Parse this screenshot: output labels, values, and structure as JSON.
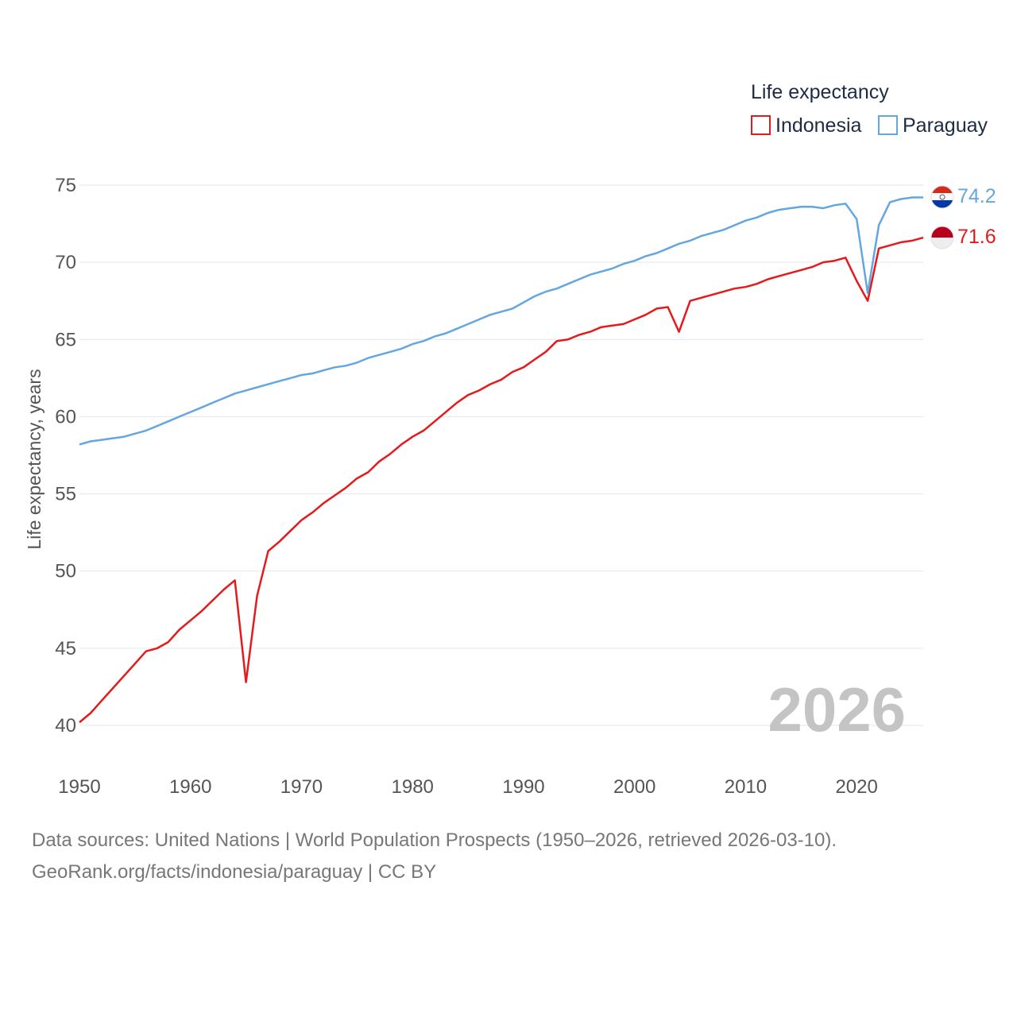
{
  "chart_data": {
    "type": "line",
    "title": "",
    "legend_title": "Life expectancy",
    "xlabel": "",
    "ylabel": "Life expectancy, years",
    "xlim": [
      1950,
      2026
    ],
    "ylim": [
      40,
      75
    ],
    "xticks": [
      1950,
      1960,
      1970,
      1980,
      1990,
      2000,
      2010,
      2020
    ],
    "yticks": [
      40,
      45,
      50,
      55,
      60,
      65,
      70,
      75
    ],
    "grid": true,
    "legend_position": "top-right",
    "current_year": "2026",
    "x": [
      1950,
      1951,
      1952,
      1953,
      1954,
      1955,
      1956,
      1957,
      1958,
      1959,
      1960,
      1961,
      1962,
      1963,
      1964,
      1965,
      1966,
      1967,
      1968,
      1969,
      1970,
      1971,
      1972,
      1973,
      1974,
      1975,
      1976,
      1977,
      1978,
      1979,
      1980,
      1981,
      1982,
      1983,
      1984,
      1985,
      1986,
      1987,
      1988,
      1989,
      1990,
      1991,
      1992,
      1993,
      1994,
      1995,
      1996,
      1997,
      1998,
      1999,
      2000,
      2001,
      2002,
      2003,
      2004,
      2005,
      2006,
      2007,
      2008,
      2009,
      2010,
      2011,
      2012,
      2013,
      2014,
      2015,
      2016,
      2017,
      2018,
      2019,
      2020,
      2021,
      2022,
      2023,
      2024,
      2025,
      2026
    ],
    "series": [
      {
        "name": "Indonesia",
        "color": "#e41a1c",
        "end_label": "71.6",
        "flag_icon": "indonesia-flag-icon",
        "values": [
          40.2,
          40.8,
          41.6,
          42.4,
          43.2,
          44.0,
          44.8,
          45.0,
          45.4,
          46.2,
          46.8,
          47.4,
          48.1,
          48.8,
          49.4,
          42.8,
          48.4,
          51.3,
          51.9,
          52.6,
          53.3,
          53.8,
          54.4,
          54.9,
          55.4,
          56.0,
          56.4,
          57.1,
          57.6,
          58.2,
          58.7,
          59.1,
          59.7,
          60.3,
          60.9,
          61.4,
          61.7,
          62.1,
          62.4,
          62.9,
          63.2,
          63.7,
          64.2,
          64.9,
          65.0,
          65.3,
          65.5,
          65.8,
          65.9,
          66.0,
          66.3,
          66.6,
          67.0,
          67.1,
          65.5,
          67.5,
          67.7,
          67.9,
          68.1,
          68.3,
          68.4,
          68.6,
          68.9,
          69.1,
          69.3,
          69.5,
          69.7,
          70.0,
          70.1,
          70.3,
          68.8,
          67.5,
          70.9,
          71.1,
          71.3,
          71.4,
          71.6
        ]
      },
      {
        "name": "Paraguay",
        "color": "#64a6e0",
        "end_label": "74.2",
        "flag_icon": "paraguay-flag-icon",
        "values": [
          58.2,
          58.4,
          58.5,
          58.6,
          58.7,
          58.9,
          59.1,
          59.4,
          59.7,
          60.0,
          60.3,
          60.6,
          60.9,
          61.2,
          61.5,
          61.7,
          61.9,
          62.1,
          62.3,
          62.5,
          62.7,
          62.8,
          63.0,
          63.2,
          63.3,
          63.5,
          63.8,
          64.0,
          64.2,
          64.4,
          64.7,
          64.9,
          65.2,
          65.4,
          65.7,
          66.0,
          66.3,
          66.6,
          66.8,
          67.0,
          67.4,
          67.8,
          68.1,
          68.3,
          68.6,
          68.9,
          69.2,
          69.4,
          69.6,
          69.9,
          70.1,
          70.4,
          70.6,
          70.9,
          71.2,
          71.4,
          71.7,
          71.9,
          72.1,
          72.4,
          72.7,
          72.9,
          73.2,
          73.4,
          73.5,
          73.6,
          73.6,
          73.5,
          73.7,
          73.8,
          72.8,
          68.0,
          72.4,
          73.9,
          74.1,
          74.2,
          74.2
        ]
      }
    ]
  },
  "footer": {
    "source": "Data sources: United Nations | World Population Prospects (1950–2026, retrieved 2026-03-10).",
    "credit": "GeoRank.org/facts/indonesia/paraguay | CC BY"
  }
}
